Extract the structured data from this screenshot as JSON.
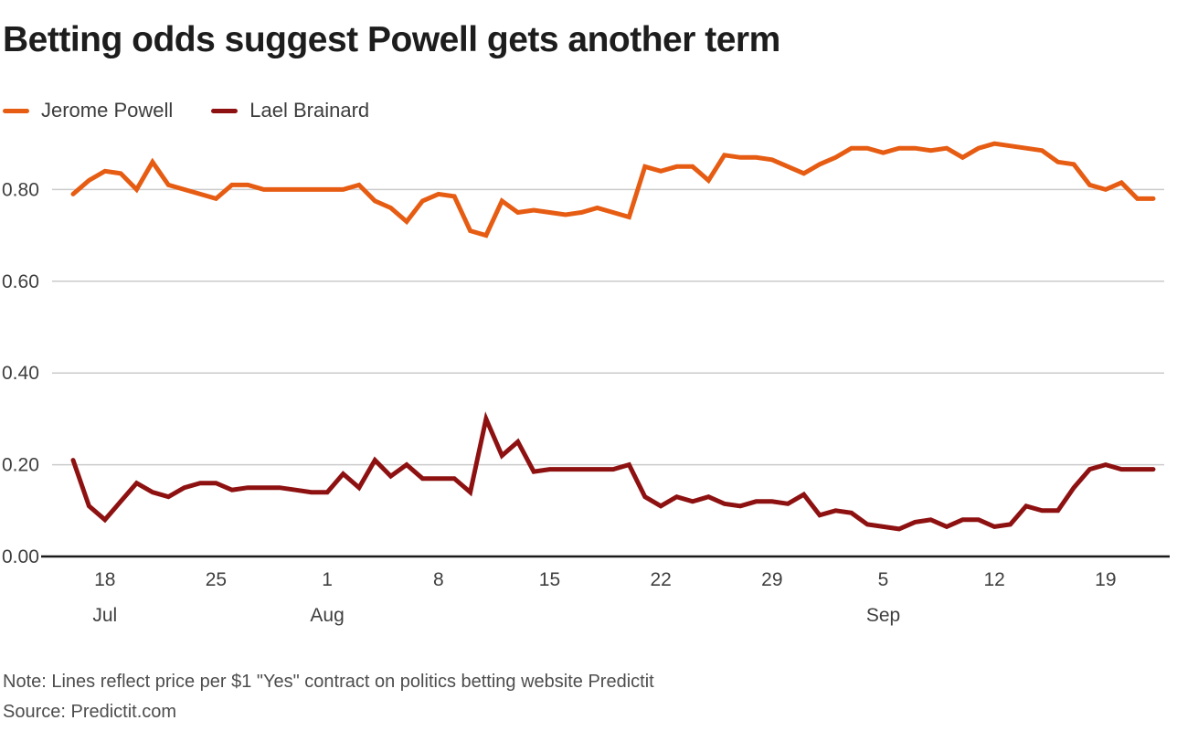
{
  "title": "Betting odds suggest Powell gets another term",
  "note": "Note: Lines reflect price per $1 \"Yes\" contract on politics betting website Predictit",
  "source": "Source: Predictit.com",
  "legend": [
    {
      "label": "Jerome Powell",
      "color": "#e65c13"
    },
    {
      "label": "Lael Brainard",
      "color": "#8e1111"
    }
  ],
  "colors": {
    "powell": "#e65c13",
    "brainard": "#8e1111",
    "gridline": "#cbcbcb",
    "axis": "#1a1a1a",
    "tick_text": "#3f3f3f"
  },
  "chart_data": {
    "type": "line",
    "title": "Betting odds suggest Powell gets another term",
    "xlabel": "",
    "ylabel": "",
    "ylim": [
      0,
      0.93
    ],
    "y_ticks": [
      0.0,
      0.2,
      0.4,
      0.6,
      0.8
    ],
    "y_tick_format": "0.00",
    "grid": true,
    "legend_position": "top-left",
    "x_interval": "daily",
    "x": [
      "Jul 16",
      "Jul 17",
      "Jul 18",
      "Jul 19",
      "Jul 20",
      "Jul 21",
      "Jul 22",
      "Jul 23",
      "Jul 24",
      "Jul 25",
      "Jul 26",
      "Jul 27",
      "Jul 28",
      "Jul 29",
      "Jul 30",
      "Jul 31",
      "Aug 1",
      "Aug 2",
      "Aug 3",
      "Aug 4",
      "Aug 5",
      "Aug 6",
      "Aug 7",
      "Aug 8",
      "Aug 9",
      "Aug 10",
      "Aug 11",
      "Aug 12",
      "Aug 13",
      "Aug 14",
      "Aug 15",
      "Aug 16",
      "Aug 17",
      "Aug 18",
      "Aug 19",
      "Aug 20",
      "Aug 21",
      "Aug 22",
      "Aug 23",
      "Aug 24",
      "Aug 25",
      "Aug 26",
      "Aug 27",
      "Aug 28",
      "Aug 29",
      "Aug 30",
      "Aug 31",
      "Sep 1",
      "Sep 2",
      "Sep 3",
      "Sep 4",
      "Sep 5",
      "Sep 6",
      "Sep 7",
      "Sep 8",
      "Sep 9",
      "Sep 10",
      "Sep 11",
      "Sep 12",
      "Sep 13",
      "Sep 14",
      "Sep 15",
      "Sep 16",
      "Sep 17",
      "Sep 18",
      "Sep 19",
      "Sep 20",
      "Sep 21",
      "Sep 22"
    ],
    "x_ticks": [
      {
        "index": 2,
        "label": "18"
      },
      {
        "index": 9,
        "label": "25"
      },
      {
        "index": 16,
        "label": "1"
      },
      {
        "index": 23,
        "label": "8"
      },
      {
        "index": 30,
        "label": "15"
      },
      {
        "index": 37,
        "label": "22"
      },
      {
        "index": 44,
        "label": "29"
      },
      {
        "index": 51,
        "label": "5"
      },
      {
        "index": 58,
        "label": "12"
      },
      {
        "index": 65,
        "label": "19"
      }
    ],
    "month_labels": [
      {
        "index": 2,
        "label": "Jul"
      },
      {
        "index": 16,
        "label": "Aug"
      },
      {
        "index": 51,
        "label": "Sep"
      }
    ],
    "series": [
      {
        "name": "Jerome Powell",
        "color": "#e65c13",
        "values": [
          0.79,
          0.82,
          0.84,
          0.835,
          0.8,
          0.86,
          0.81,
          0.8,
          0.79,
          0.78,
          0.81,
          0.81,
          0.8,
          0.8,
          0.8,
          0.8,
          0.8,
          0.8,
          0.81,
          0.775,
          0.76,
          0.73,
          0.775,
          0.79,
          0.785,
          0.71,
          0.7,
          0.775,
          0.75,
          0.755,
          0.75,
          0.745,
          0.75,
          0.76,
          0.75,
          0.74,
          0.85,
          0.84,
          0.85,
          0.85,
          0.82,
          0.875,
          0.87,
          0.87,
          0.865,
          0.85,
          0.835,
          0.855,
          0.87,
          0.89,
          0.89,
          0.88,
          0.89,
          0.89,
          0.885,
          0.89,
          0.87,
          0.89,
          0.9,
          0.895,
          0.89,
          0.885,
          0.86,
          0.855,
          0.81,
          0.8,
          0.815,
          0.78,
          0.78
        ]
      },
      {
        "name": "Lael Brainard",
        "color": "#8e1111",
        "values": [
          0.21,
          0.11,
          0.08,
          0.12,
          0.16,
          0.14,
          0.13,
          0.15,
          0.16,
          0.16,
          0.145,
          0.15,
          0.15,
          0.15,
          0.145,
          0.14,
          0.14,
          0.18,
          0.15,
          0.21,
          0.175,
          0.2,
          0.17,
          0.17,
          0.17,
          0.14,
          0.3,
          0.22,
          0.25,
          0.185,
          0.19,
          0.19,
          0.19,
          0.19,
          0.19,
          0.2,
          0.13,
          0.11,
          0.13,
          0.12,
          0.13,
          0.115,
          0.11,
          0.12,
          0.12,
          0.115,
          0.135,
          0.09,
          0.1,
          0.095,
          0.07,
          0.065,
          0.06,
          0.075,
          0.08,
          0.065,
          0.08,
          0.08,
          0.065,
          0.07,
          0.11,
          0.1,
          0.1,
          0.15,
          0.19,
          0.2,
          0.19,
          0.19,
          0.19
        ]
      }
    ]
  }
}
